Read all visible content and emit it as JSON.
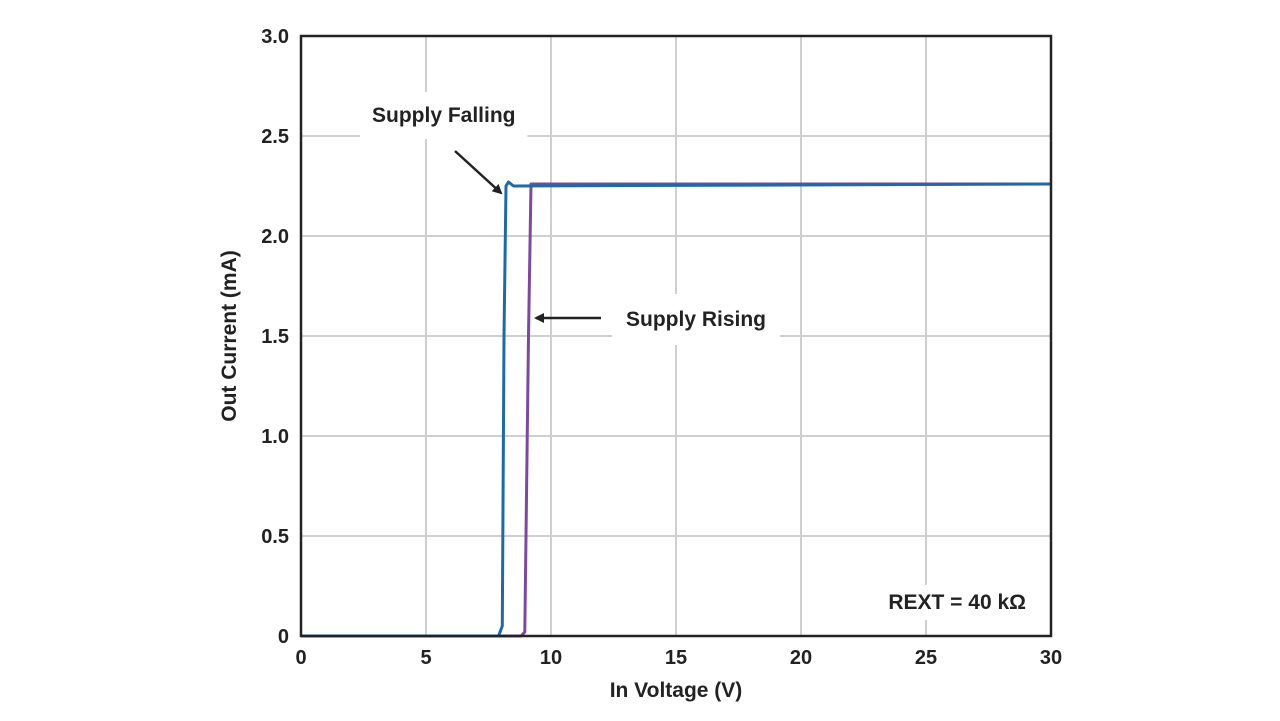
{
  "chart_data": {
    "type": "line",
    "xlabel": "In Voltage (V)",
    "ylabel": "Out Current (mA)",
    "xlim": [
      0,
      30
    ],
    "ylim": [
      0,
      3.0
    ],
    "x_ticks": [
      0,
      5,
      10,
      15,
      20,
      25,
      30
    ],
    "x_tick_labels": [
      "0",
      "5",
      "10",
      "15",
      "20",
      "25",
      "30"
    ],
    "y_ticks": [
      0,
      0.5,
      1.0,
      1.5,
      2.0,
      2.5,
      3.0
    ],
    "y_tick_labels": [
      "0",
      "0.5",
      "1.0",
      "1.5",
      "2.0",
      "2.5",
      "3.0"
    ],
    "grid": true,
    "series": [
      {
        "name": "Supply Rising",
        "color": "#7b4a9e",
        "x": [
          0,
          7.2,
          8.8,
          8.95,
          9.1,
          9.2,
          9.35,
          30
        ],
        "y": [
          0,
          0,
          0,
          0.02,
          1.5,
          2.26,
          2.26,
          2.26
        ]
      },
      {
        "name": "Supply Falling",
        "color": "#1f6aa5",
        "x": [
          0,
          7.9,
          8.05,
          8.12,
          8.2,
          8.3,
          8.5,
          30
        ],
        "y": [
          0,
          0,
          0.05,
          1.5,
          2.25,
          2.27,
          2.25,
          2.26
        ]
      }
    ],
    "annotations": [
      {
        "text": "Supply Falling",
        "target_series": "Supply Falling"
      },
      {
        "text": "Supply Rising",
        "target_series": "Supply Rising"
      },
      {
        "text": "REXT = 40 kΩ"
      }
    ]
  }
}
